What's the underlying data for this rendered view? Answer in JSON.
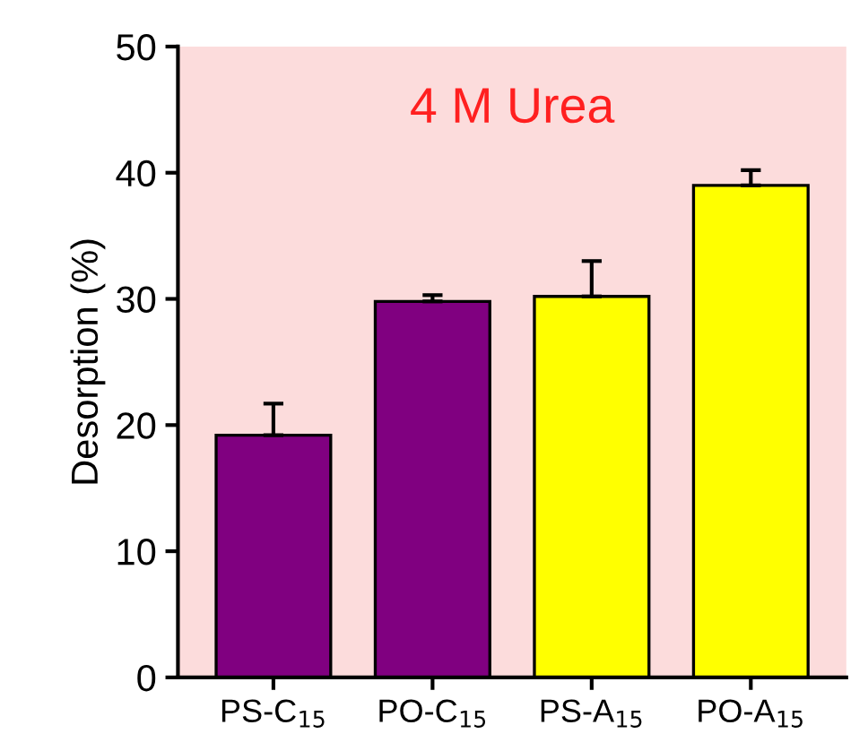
{
  "chart_data": {
    "type": "bar",
    "ylabel": "Desorption (%)",
    "categories": [
      "PS-C$_{15}$",
      "PO-C$_{15}$",
      "PS-A$_{15}$",
      "PO-A$_{15}$"
    ],
    "values": [
      19.2,
      29.8,
      30.2,
      39.0
    ],
    "colors": [
      "#800080",
      "#800080",
      "#ffff00",
      "#ffff00"
    ],
    "errors": [
      [
        19.2,
        21.7
      ],
      [
        29.8,
        30.3
      ],
      [
        30.2,
        33.0
      ],
      [
        39.0,
        40.2
      ]
    ],
    "annotations": [
      "4 M Urea"
    ],
    "ylim": [
      0,
      50
    ],
    "yticks": [
      0,
      10,
      20,
      30,
      40,
      50
    ],
    "grid": false,
    "legend": false
  }
}
